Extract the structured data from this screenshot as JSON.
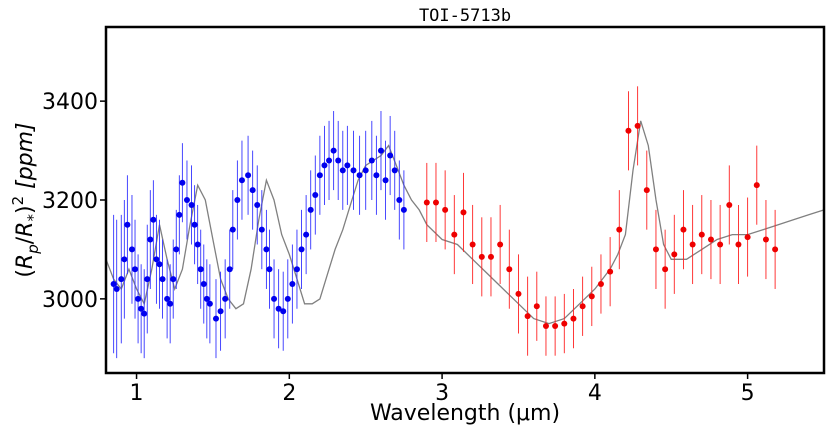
{
  "chart_data": {
    "type": "scatter",
    "title": "TOI-5713b",
    "xlabel": "Wavelength (μm)",
    "ylabel": "(R_p/R_*)^2 [ppm]",
    "xlim": [
      0.8,
      5.5
    ],
    "ylim": [
      2850,
      3550
    ],
    "xticks": [
      1,
      2,
      3,
      4,
      5
    ],
    "yticks": [
      3000,
      3200,
      3400
    ],
    "xtick_labels": [
      "1",
      "2",
      "3",
      "4",
      "5"
    ],
    "ytick_labels": [
      "3000",
      "3200",
      "3400"
    ],
    "grid": false,
    "colors": {
      "model": "#808080",
      "blue": "#0000ee",
      "red": "#ee0000",
      "blue_err": "#3333ff",
      "red_err": "#ff2222"
    },
    "model": {
      "name": "model spectrum",
      "x": [
        0.8,
        0.85,
        0.9,
        0.95,
        1.0,
        1.05,
        1.1,
        1.15,
        1.2,
        1.25,
        1.3,
        1.35,
        1.4,
        1.45,
        1.5,
        1.55,
        1.6,
        1.65,
        1.7,
        1.75,
        1.8,
        1.85,
        1.9,
        1.95,
        2.0,
        2.05,
        2.1,
        2.15,
        2.2,
        2.25,
        2.3,
        2.35,
        2.4,
        2.45,
        2.5,
        2.55,
        2.6,
        2.65,
        2.7,
        2.75,
        2.8,
        2.85,
        2.9,
        3.0,
        3.1,
        3.2,
        3.3,
        3.4,
        3.5,
        3.6,
        3.7,
        3.8,
        3.9,
        4.0,
        4.1,
        4.15,
        4.2,
        4.25,
        4.3,
        4.35,
        4.4,
        4.45,
        4.5,
        4.6,
        4.7,
        4.8,
        4.9,
        5.0,
        5.1,
        5.2,
        5.3,
        5.4,
        5.5
      ],
      "y": [
        3080,
        3040,
        3020,
        3060,
        3020,
        2990,
        3060,
        3150,
        3080,
        3020,
        3060,
        3150,
        3230,
        3200,
        3120,
        3040,
        3000,
        2980,
        2990,
        3060,
        3160,
        3240,
        3200,
        3130,
        3090,
        3040,
        2990,
        2990,
        3000,
        3050,
        3100,
        3140,
        3190,
        3240,
        3270,
        3280,
        3290,
        3310,
        3270,
        3230,
        3200,
        3180,
        3150,
        3120,
        3110,
        3080,
        3050,
        3020,
        2990,
        2960,
        2950,
        2960,
        2990,
        3020,
        3060,
        3090,
        3130,
        3260,
        3360,
        3310,
        3200,
        3110,
        3080,
        3080,
        3100,
        3120,
        3130,
        3130,
        3140,
        3150,
        3160,
        3170,
        3180
      ]
    },
    "series": [
      {
        "name": "blue points",
        "x": [
          0.85,
          0.87,
          0.9,
          0.92,
          0.94,
          0.97,
          0.99,
          1.01,
          1.03,
          1.05,
          1.07,
          1.09,
          1.11,
          1.13,
          1.15,
          1.17,
          1.2,
          1.22,
          1.24,
          1.26,
          1.28,
          1.3,
          1.33,
          1.36,
          1.38,
          1.4,
          1.42,
          1.44,
          1.46,
          1.48,
          1.52,
          1.55,
          1.58,
          1.61,
          1.63,
          1.66,
          1.69,
          1.73,
          1.76,
          1.79,
          1.82,
          1.85,
          1.87,
          1.9,
          1.93,
          1.96,
          1.99,
          2.02,
          2.05,
          2.08,
          2.11,
          2.14,
          2.17,
          2.2,
          2.23,
          2.26,
          2.29,
          2.32,
          2.35,
          2.38,
          2.42,
          2.46,
          2.5,
          2.54,
          2.57,
          2.6,
          2.63,
          2.66,
          2.69,
          2.72,
          2.75
        ],
        "y": [
          3030,
          3020,
          3040,
          3080,
          3150,
          3100,
          3060,
          3000,
          2980,
          2970,
          3040,
          3120,
          3160,
          3080,
          3070,
          3040,
          3000,
          2990,
          3040,
          3100,
          3170,
          3235,
          3200,
          3190,
          3150,
          3110,
          3060,
          3030,
          3000,
          2990,
          2960,
          2975,
          3000,
          3060,
          3140,
          3200,
          3240,
          3250,
          3220,
          3190,
          3140,
          3100,
          3060,
          3000,
          2980,
          2975,
          3000,
          3030,
          3060,
          3100,
          3130,
          3180,
          3210,
          3250,
          3270,
          3280,
          3300,
          3280,
          3260,
          3270,
          3260,
          3250,
          3260,
          3280,
          3250,
          3300,
          3240,
          3290,
          3260,
          3200,
          3180
        ],
        "err": [
          140,
          140,
          130,
          120,
          100,
          110,
          100,
          90,
          90,
          90,
          110,
          100,
          80,
          90,
          90,
          80,
          80,
          80,
          80,
          80,
          80,
          80,
          80,
          80,
          80,
          80,
          80,
          80,
          80,
          80,
          80,
          80,
          80,
          80,
          80,
          80,
          80,
          80,
          80,
          80,
          80,
          80,
          80,
          80,
          80,
          80,
          80,
          80,
          80,
          80,
          80,
          80,
          80,
          80,
          80,
          80,
          80,
          80,
          80,
          80,
          80,
          80,
          80,
          80,
          80,
          80,
          80,
          80,
          80,
          80,
          80
        ]
      },
      {
        "name": "red points",
        "x": [
          2.9,
          2.96,
          3.02,
          3.08,
          3.14,
          3.2,
          3.26,
          3.32,
          3.38,
          3.44,
          3.5,
          3.56,
          3.62,
          3.68,
          3.74,
          3.8,
          3.86,
          3.92,
          3.98,
          4.04,
          4.1,
          4.16,
          4.22,
          4.28,
          4.34,
          4.4,
          4.46,
          4.52,
          4.58,
          4.64,
          4.7,
          4.76,
          4.82,
          4.88,
          4.94,
          5.0,
          5.06,
          5.12,
          5.18
        ],
        "y": [
          3195,
          3195,
          3180,
          3130,
          3175,
          3110,
          3085,
          3085,
          3110,
          3060,
          3010,
          2965,
          2985,
          2945,
          2945,
          2950,
          2960,
          2985,
          3005,
          3030,
          3055,
          3140,
          3340,
          3350,
          3220,
          3100,
          3060,
          3090,
          3140,
          3110,
          3130,
          3120,
          3110,
          3190,
          3110,
          3125,
          3230,
          3120,
          3100
        ],
        "err": [
          80,
          80,
          80,
          80,
          80,
          80,
          80,
          80,
          80,
          80,
          80,
          80,
          70,
          60,
          60,
          60,
          60,
          60,
          60,
          60,
          70,
          80,
          80,
          80,
          80,
          80,
          80,
          80,
          80,
          80,
          80,
          80,
          80,
          80,
          80,
          80,
          80,
          80,
          80
        ]
      }
    ]
  }
}
